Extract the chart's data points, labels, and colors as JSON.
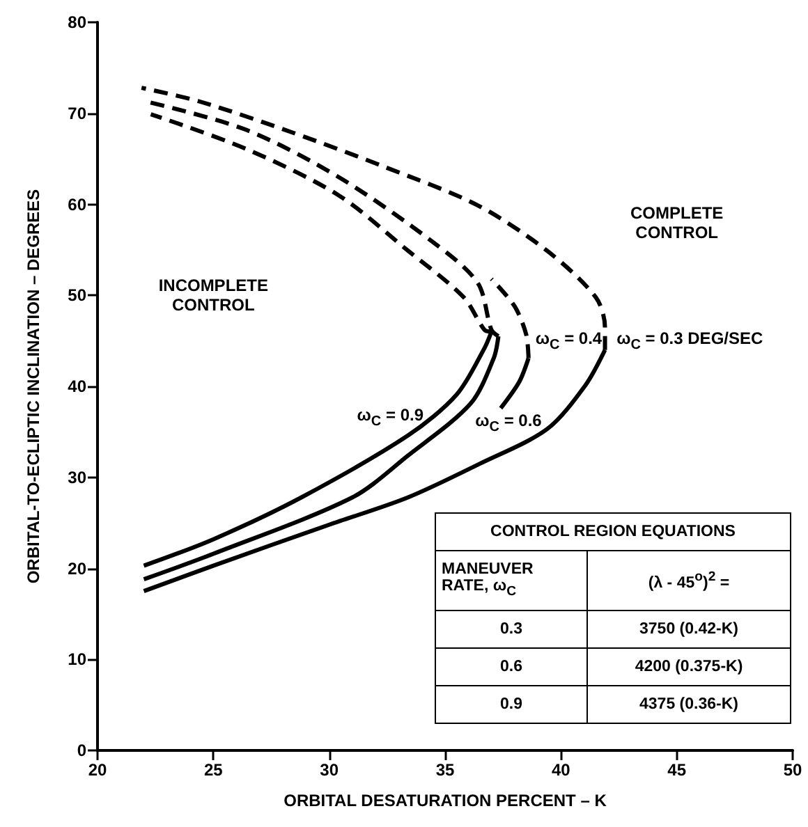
{
  "chart_data": {
    "type": "line",
    "xlabel": "ORBITAL DESATURATION PERCENT – K",
    "ylabel": "ORBITAL-TO-ECLIPTIC INCLINATION – DEGREES",
    "xlim": [
      20,
      50
    ],
    "xticks": [
      20,
      25,
      30,
      35,
      40,
      45,
      50
    ],
    "ylim": [
      0,
      80
    ],
    "yticks": [
      0,
      10,
      20,
      30,
      40,
      50,
      60,
      70,
      80
    ],
    "grid": false,
    "marker": "none",
    "series": [
      {
        "color": "#000000",
        "line_style": "solid",
        "x": [
          22,
          25,
          28.8,
          33.4,
          35.5,
          36.7,
          37
        ],
        "values": [
          20.3,
          23.2,
          27.8,
          34.6,
          39.1,
          44.2,
          46
        ]
      },
      {
        "color": "#000000",
        "line_style": "dashed",
        "x": [
          37,
          36.7,
          35.8,
          33.4,
          30.4,
          26.4,
          22.3
        ],
        "values": [
          46,
          46.2,
          49.8,
          54.9,
          61,
          66.1,
          69.9
        ]
      },
      {
        "color": "#000000",
        "line_style": "solid",
        "x": [
          22,
          25,
          31,
          33.4,
          36.1,
          37.1,
          37.3
        ],
        "values": [
          18.8,
          21.6,
          27.8,
          32.4,
          38.1,
          43.1,
          45.5
        ]
      },
      {
        "color": "#000000",
        "line_style": "dashed",
        "x": [
          37.3,
          37,
          36.4,
          34.4,
          30.4,
          26.4,
          22.1
        ],
        "values": [
          45.5,
          46.2,
          51.4,
          56,
          63,
          68.2,
          71.3
        ]
      },
      {
        "color": "#000000",
        "line_style": "solid",
        "x": [
          37.4,
          38.2,
          38.6
        ],
        "values": [
          37.6,
          40.5,
          43.1
        ]
      },
      {
        "color": "#000000",
        "line_style": "dashed",
        "x": [
          38.6,
          38.5,
          38,
          37
        ],
        "values": [
          43.1,
          45.7,
          48.8,
          51.8
        ]
      },
      {
        "color": "#000000",
        "line_style": "solid",
        "x": [
          22,
          25,
          30,
          33.4,
          36.5,
          39.4,
          41.05,
          41.9
        ],
        "values": [
          17.5,
          20.3,
          24.8,
          27.8,
          31.5,
          35.3,
          40.1,
          44
        ]
      },
      {
        "color": "#000000",
        "line_style": "dashed",
        "x": [
          41.9,
          41.9,
          41.5,
          39.4,
          36.4,
          32.4,
          28.4,
          24.4,
          21.9
        ],
        "values": [
          44,
          46.5,
          49.8,
          54.9,
          59.9,
          64.1,
          67.9,
          71.3,
          72.8
        ]
      }
    ],
    "annotations": [
      "INCOMPLETE CONTROL",
      "COMPLETE CONTROL",
      "ω$_{C}$ = 0.9",
      "ω$_{C}$ = 0.6",
      "ω$_{C}$ = 0.4",
      "ω$_{C}$ = 0.3 DEG/SEC",
      "CONTROL REGION EQUATIONS",
      "MANEUVER RATE, ω$_{C}$",
      "(λ - 45$^{o}$)$^{2}$ =",
      "0.3",
      "3750 (0.42-K)",
      "0.6",
      "4200 (0.375-K)",
      "0.9",
      "4375 (0.36-K)"
    ]
  }
}
